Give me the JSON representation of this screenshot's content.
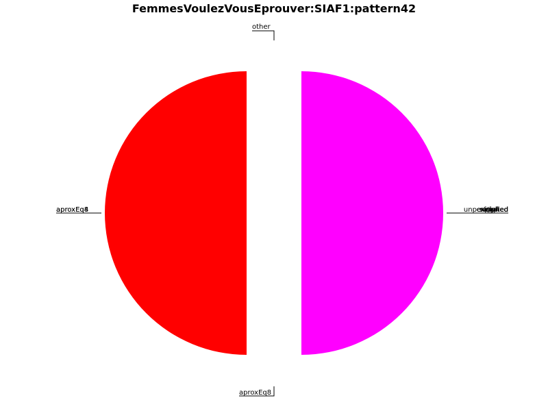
{
  "chart_data": {
    "type": "pie",
    "title": "FemmesVoulezVousEprouver:SIAF1:pattern42",
    "slices": [
      {
        "label": "other",
        "value": 0.5,
        "color": "#ff0000"
      },
      {
        "label": "aproxEq8",
        "value": 0.5,
        "color": "#ff00ff"
      }
    ],
    "collapsed_labels_left": [
      "aproxEq8",
      "aproxEq4"
    ],
    "collapsed_labels_right": [
      "unperformed",
      "applied",
      "exploited",
      "satisfied",
      "copied",
      "negated"
    ]
  }
}
